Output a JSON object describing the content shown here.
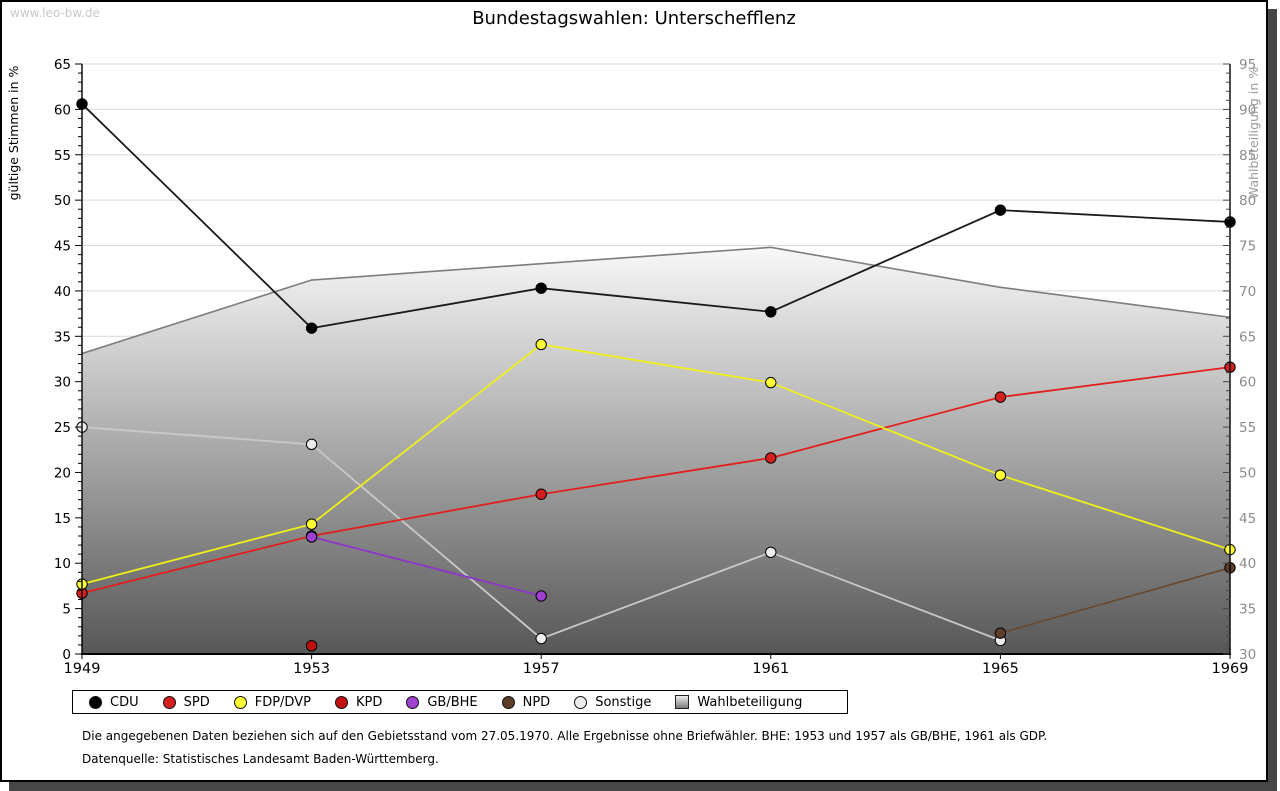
{
  "watermark": "www.leo-bw.de",
  "title": "Bundestagswahlen: Unterschefflenz",
  "footnotes": {
    "line1": "Die angegebenen Daten beziehen sich auf den Gebietsstand vom 27.05.1970. Alle Ergebnisse ohne Briefwähler. BHE: 1953 und 1957 als GB/BHE, 1961 als GDP.",
    "line2": "Datenquelle: Statistisches Landesamt Baden-Württemberg."
  },
  "legend": {
    "items": [
      {
        "label": "CDU",
        "color": "#000000",
        "type": "circle"
      },
      {
        "label": "SPD",
        "color": "#d41f1f",
        "type": "circle"
      },
      {
        "label": "FDP/DVP",
        "color": "#ffff33",
        "type": "circle"
      },
      {
        "label": "KPD",
        "color": "#c01010",
        "type": "circle"
      },
      {
        "label": "GB/BHE",
        "color": "#a040d0",
        "type": "circle"
      },
      {
        "label": "NPD",
        "color": "#5d3d26",
        "type": "circle"
      },
      {
        "label": "Sonstige",
        "color": "#ececec",
        "type": "circle"
      },
      {
        "label": "Wahlbeteiligung",
        "color": "#bbbbbb",
        "type": "square"
      }
    ]
  },
  "chart_data": {
    "type": "line",
    "title": "Bundestagswahlen: Unterschefflenz",
    "x": [
      1949,
      1953,
      1957,
      1961,
      1965,
      1969
    ],
    "left_axis": {
      "label": "gültige Stimmen in %",
      "min": 0,
      "max": 65,
      "tick_step": 5,
      "minor_step": 1
    },
    "right_axis": {
      "label": "Wahlbeteiligung in %",
      "min": 30,
      "max": 95,
      "tick_step": 5,
      "minor_step": 1
    },
    "grid": "horizontal",
    "legend_position": "bottom",
    "series": [
      {
        "name": "Sonstige",
        "axis": "left",
        "color": "#c9c9c9",
        "marker_fill": "#ececec",
        "values": [
          25.0,
          23.1,
          1.7,
          11.2,
          1.5,
          null
        ]
      },
      {
        "name": "SPD",
        "axis": "left",
        "color": "#e31e1e",
        "marker_fill": "#d41f1f",
        "values": [
          6.7,
          13.0,
          17.6,
          21.6,
          28.3,
          31.6
        ]
      },
      {
        "name": "KPD",
        "axis": "left",
        "color": "#b51313",
        "marker_fill": "#c01010",
        "values": [
          null,
          0.9,
          null,
          null,
          null,
          null
        ]
      },
      {
        "name": "FDP/DVP",
        "axis": "left",
        "color": "#efef1a",
        "marker_fill": "#ffff33",
        "values": [
          7.7,
          14.3,
          34.1,
          29.9,
          19.7,
          11.5
        ]
      },
      {
        "name": "GB/BHE",
        "axis": "left",
        "color": "#8c35c8",
        "marker_fill": "#a040d0",
        "values": [
          null,
          12.9,
          6.4,
          null,
          null,
          null
        ]
      },
      {
        "name": "NPD",
        "axis": "left",
        "color": "#6a4a30",
        "marker_fill": "#5d3d26",
        "values": [
          null,
          null,
          null,
          null,
          2.3,
          9.5
        ]
      },
      {
        "name": "CDU",
        "axis": "left",
        "color": "#1a1a1a",
        "marker_fill": "#000000",
        "values": [
          60.6,
          35.9,
          40.3,
          37.7,
          48.9,
          47.6
        ]
      }
    ],
    "area_series": {
      "name": "Wahlbeteiligung",
      "axis": "right",
      "stroke": "#7d7d7d",
      "gradient_top": "#f8f8f8",
      "gradient_bottom": "#575757",
      "values": [
        63.1,
        71.2,
        73.0,
        74.8,
        70.4,
        67.1
      ]
    }
  }
}
